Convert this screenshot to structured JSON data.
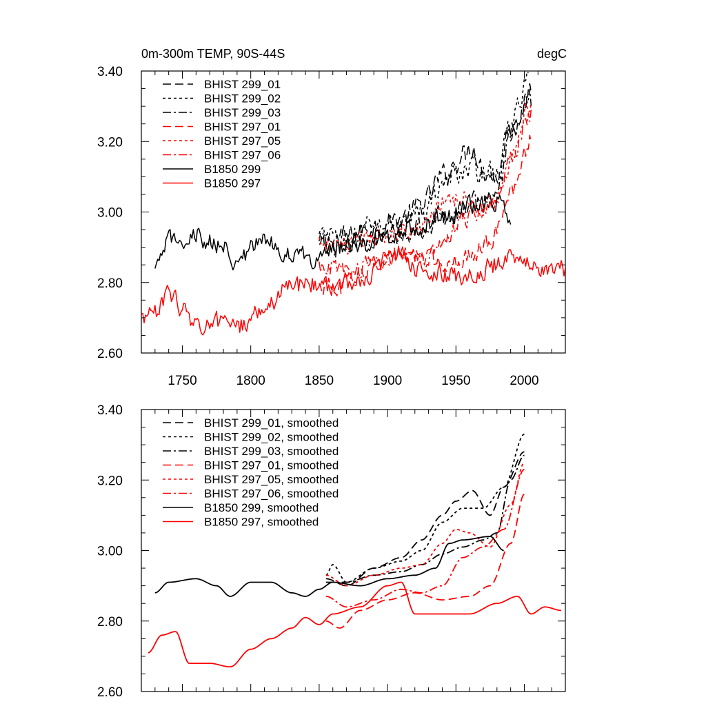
{
  "chart_data": [
    {
      "type": "line",
      "title": "0m-300m TEMP, 90S-44S",
      "units": "degC",
      "xlabel": "",
      "ylabel": "",
      "xlim": [
        1720,
        2030
      ],
      "ylim": [
        2.6,
        3.4
      ],
      "xticks": [
        1750,
        1800,
        1850,
        1900,
        1950,
        2000
      ],
      "xtick_labels": [
        "1750",
        "1800",
        "1850",
        "1900",
        "1950",
        "2000"
      ],
      "yticks": [
        2.6,
        2.8,
        3.0,
        3.2,
        3.4
      ],
      "ytick_labels": [
        "2.60",
        "2.80",
        "3.00",
        "3.20",
        "3.40"
      ],
      "legend": "top-left",
      "series": [
        {
          "name": "BHIST 299_01",
          "color": "#000000",
          "dash": "12,6",
          "noise": 0.03,
          "x": [
            1850,
            1870,
            1890,
            1910,
            1925,
            1940,
            1955,
            1962,
            1970,
            1980,
            1990,
            2005
          ],
          "y": [
            2.91,
            2.93,
            2.96,
            2.98,
            3.02,
            3.1,
            3.16,
            3.19,
            3.12,
            3.1,
            3.25,
            3.33
          ]
        },
        {
          "name": "BHIST 299_02",
          "color": "#000000",
          "dash": "4,4",
          "noise": 0.03,
          "x": [
            1850,
            1870,
            1890,
            1910,
            1925,
            1940,
            1955,
            1970,
            1980,
            1990,
            2003
          ],
          "y": [
            2.93,
            2.92,
            2.96,
            2.97,
            3.0,
            3.08,
            3.12,
            3.12,
            3.1,
            3.25,
            3.37
          ]
        },
        {
          "name": "BHIST 299_03",
          "color": "#000000",
          "dash": "12,4,3,4",
          "noise": 0.03,
          "x": [
            1850,
            1870,
            1890,
            1910,
            1925,
            1940,
            1955,
            1970,
            1980,
            1990,
            2005
          ],
          "y": [
            2.9,
            2.91,
            2.93,
            2.94,
            2.96,
            2.99,
            3.01,
            3.03,
            3.05,
            3.22,
            3.32
          ]
        },
        {
          "name": "BHIST 297_01",
          "color": "#ff0000",
          "dash": "12,6",
          "noise": 0.025,
          "x": [
            1850,
            1865,
            1880,
            1900,
            1920,
            1940,
            1960,
            1975,
            1990,
            2005
          ],
          "y": [
            2.79,
            2.78,
            2.83,
            2.87,
            2.88,
            2.86,
            2.87,
            2.92,
            3.05,
            3.2
          ]
        },
        {
          "name": "BHIST 297_05",
          "color": "#ff0000",
          "dash": "4,4",
          "noise": 0.025,
          "x": [
            1850,
            1870,
            1890,
            1910,
            1925,
            1940,
            1955,
            1970,
            1980,
            1990,
            2005
          ],
          "y": [
            2.92,
            2.9,
            2.93,
            2.95,
            2.96,
            3.02,
            3.05,
            3.01,
            3.02,
            3.15,
            3.32
          ]
        },
        {
          "name": "BHIST 297_06",
          "color": "#ff0000",
          "dash": "12,4,3,4",
          "noise": 0.025,
          "x": [
            1850,
            1870,
            1890,
            1910,
            1925,
            1940,
            1955,
            1970,
            1980,
            1990,
            2005
          ],
          "y": [
            2.85,
            2.83,
            2.85,
            2.88,
            2.87,
            2.9,
            2.98,
            3.01,
            3.05,
            3.15,
            3.28
          ]
        },
        {
          "name": "B1850 299",
          "color": "#000000",
          "dash": "",
          "noise": 0.025,
          "x": [
            1730,
            1740,
            1760,
            1780,
            1790,
            1810,
            1830,
            1845,
            1860,
            1880,
            1900,
            1920,
            1940,
            1960,
            1980,
            1990
          ],
          "y": [
            2.83,
            2.92,
            2.93,
            2.9,
            2.86,
            2.92,
            2.88,
            2.87,
            2.9,
            2.91,
            2.93,
            2.96,
            2.98,
            3.02,
            3.03,
            2.99
          ]
        },
        {
          "name": "B1850 297",
          "color": "#ff0000",
          "dash": "",
          "noise": 0.025,
          "x": [
            1720,
            1730,
            1740,
            1750,
            1760,
            1780,
            1790,
            1810,
            1830,
            1845,
            1860,
            1880,
            1900,
            1910,
            1920,
            1940,
            1960,
            1980,
            1995,
            2010,
            2030
          ],
          "y": [
            2.7,
            2.71,
            2.77,
            2.73,
            2.68,
            2.69,
            2.67,
            2.73,
            2.79,
            2.8,
            2.79,
            2.81,
            2.86,
            2.88,
            2.84,
            2.82,
            2.82,
            2.85,
            2.88,
            2.83,
            2.84
          ]
        }
      ]
    },
    {
      "type": "line",
      "title": "",
      "xlabel": "",
      "ylabel": "",
      "xlim": [
        1720,
        2030
      ],
      "ylim": [
        2.6,
        3.4
      ],
      "xticks": [
        1750,
        1800,
        1850,
        1900,
        1950,
        2000
      ],
      "yticks": [
        2.6,
        2.8,
        3.0,
        3.2,
        3.4
      ],
      "ytick_labels": [
        "2.60",
        "2.80",
        "3.00",
        "3.20",
        "3.40"
      ],
      "legend": "top-left",
      "series": [
        {
          "name": "BHIST 299_01, smoothed",
          "color": "#000000",
          "dash": "12,6",
          "x": [
            1855,
            1870,
            1890,
            1910,
            1925,
            1940,
            1950,
            1962,
            1975,
            1985,
            2000
          ],
          "y": [
            2.92,
            2.9,
            2.95,
            2.98,
            3.03,
            3.1,
            3.14,
            3.17,
            3.1,
            3.18,
            3.28
          ]
        },
        {
          "name": "BHIST 299_02, smoothed",
          "color": "#000000",
          "dash": "4,4",
          "x": [
            1855,
            1860,
            1870,
            1890,
            1910,
            1925,
            1940,
            1955,
            1970,
            1985,
            2000
          ],
          "y": [
            2.93,
            2.96,
            2.91,
            2.95,
            2.97,
            3.0,
            3.08,
            3.12,
            3.12,
            3.18,
            3.33
          ]
        },
        {
          "name": "BHIST 299_03, smoothed",
          "color": "#000000",
          "dash": "12,4,3,4",
          "x": [
            1855,
            1870,
            1890,
            1910,
            1925,
            1940,
            1955,
            1970,
            1980,
            1990,
            2000
          ],
          "y": [
            2.91,
            2.91,
            2.93,
            2.94,
            2.96,
            2.99,
            3.01,
            3.03,
            3.05,
            3.2,
            3.27
          ]
        },
        {
          "name": "BHIST 297_01, smoothed",
          "color": "#ff0000",
          "dash": "12,6",
          "x": [
            1855,
            1865,
            1880,
            1900,
            1920,
            1940,
            1960,
            1975,
            1990,
            2000
          ],
          "y": [
            2.8,
            2.78,
            2.83,
            2.86,
            2.88,
            2.86,
            2.87,
            2.9,
            3.02,
            3.16
          ]
        },
        {
          "name": "BHIST 297_05, smoothed",
          "color": "#ff0000",
          "dash": "4,4",
          "x": [
            1855,
            1870,
            1890,
            1910,
            1925,
            1940,
            1950,
            1960,
            1975,
            1990,
            2000
          ],
          "y": [
            2.93,
            2.9,
            2.93,
            2.95,
            2.96,
            3.02,
            3.06,
            3.05,
            3.01,
            3.13,
            3.25
          ]
        },
        {
          "name": "BHIST 297_06, smoothed",
          "color": "#ff0000",
          "dash": "12,4,3,4",
          "x": [
            1855,
            1870,
            1890,
            1910,
            1925,
            1940,
            1955,
            1970,
            1985,
            2000
          ],
          "y": [
            2.87,
            2.84,
            2.86,
            2.89,
            2.88,
            2.9,
            2.98,
            3.01,
            3.06,
            3.23
          ]
        },
        {
          "name": "B1850 299, smoothed",
          "color": "#000000",
          "dash": "",
          "x": [
            1730,
            1740,
            1760,
            1775,
            1785,
            1800,
            1815,
            1830,
            1840,
            1850,
            1860,
            1880,
            1900,
            1920,
            1935,
            1945,
            1955,
            1975,
            1985
          ],
          "y": [
            2.88,
            2.91,
            2.92,
            2.9,
            2.87,
            2.91,
            2.91,
            2.88,
            2.87,
            2.89,
            2.91,
            2.9,
            2.92,
            2.93,
            2.95,
            3.02,
            3.03,
            3.04,
            3.0
          ]
        },
        {
          "name": "B1850 297, smoothed",
          "color": "#ff0000",
          "dash": "",
          "x": [
            1725,
            1735,
            1745,
            1755,
            1770,
            1785,
            1800,
            1815,
            1830,
            1840,
            1850,
            1860,
            1880,
            1900,
            1910,
            1920,
            1940,
            1960,
            1980,
            1995,
            2005,
            2015,
            2027
          ],
          "y": [
            2.71,
            2.76,
            2.77,
            2.68,
            2.68,
            2.67,
            2.72,
            2.75,
            2.78,
            2.81,
            2.79,
            2.82,
            2.84,
            2.9,
            2.91,
            2.82,
            2.82,
            2.82,
            2.85,
            2.87,
            2.82,
            2.84,
            2.83
          ]
        }
      ]
    }
  ]
}
